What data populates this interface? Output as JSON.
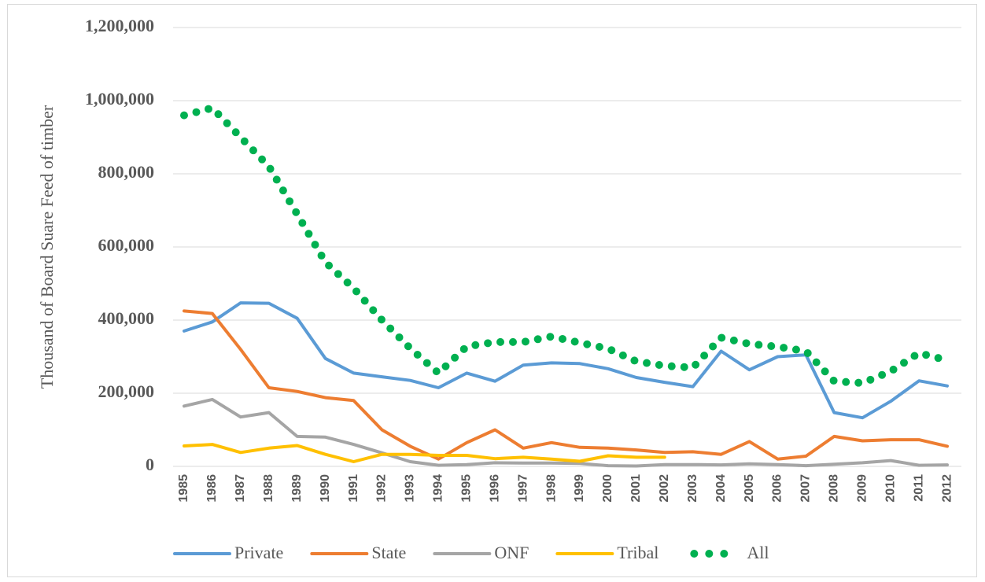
{
  "chart_data": {
    "type": "line",
    "y_label": "Thousand of Board Suare Feed of timber",
    "categories": [
      "1985",
      "1986",
      "1987",
      "1988",
      "1989",
      "1990",
      "1991",
      "1992",
      "1993",
      "1994",
      "1995",
      "1996",
      "1997",
      "1998",
      "1999",
      "2000",
      "2001",
      "2002",
      "2003",
      "2004",
      "2005",
      "2006",
      "2007",
      "2008",
      "2009",
      "2010",
      "2011",
      "2012"
    ],
    "series": [
      {
        "name": "Private",
        "color": "#5b9bd5",
        "style": "solid",
        "values": [
          370000,
          395000,
          447000,
          446000,
          405000,
          295000,
          255000,
          245000,
          235000,
          215000,
          255000,
          233000,
          277000,
          283000,
          281000,
          267000,
          243000,
          230000,
          218000,
          315000,
          264000,
          300000,
          305000,
          147000,
          133000,
          178000,
          234000,
          220000
        ]
      },
      {
        "name": "State",
        "color": "#ed7d31",
        "style": "solid",
        "values": [
          425000,
          418000,
          320000,
          215000,
          205000,
          188000,
          180000,
          100000,
          55000,
          20000,
          65000,
          100000,
          50000,
          65000,
          52000,
          50000,
          45000,
          38000,
          40000,
          33000,
          68000,
          20000,
          28000,
          82000,
          70000,
          73000,
          73000,
          55000
        ]
      },
      {
        "name": "ONF",
        "color": "#a5a5a5",
        "style": "solid",
        "values": [
          165000,
          183000,
          135000,
          147000,
          82000,
          80000,
          60000,
          37000,
          13000,
          3000,
          5000,
          10000,
          9000,
          9000,
          8000,
          2000,
          1000,
          5000,
          5000,
          4000,
          7000,
          5000,
          2000,
          6000,
          10000,
          16000,
          3000,
          4000
        ]
      },
      {
        "name": "Tribal",
        "color": "#ffc000",
        "style": "solid",
        "values": [
          56000,
          60000,
          38000,
          50000,
          57000,
          33000,
          13000,
          33000,
          33000,
          30000,
          30000,
          21000,
          25000,
          20000,
          14000,
          29000,
          25000,
          25000,
          null,
          null,
          null,
          null,
          null,
          null,
          null,
          null,
          null,
          null
        ]
      },
      {
        "name": "All",
        "color": "#00b050",
        "style": "dotted",
        "values": [
          960000,
          980000,
          900000,
          820000,
          690000,
          558000,
          487000,
          400000,
          323000,
          255000,
          328000,
          340000,
          340000,
          355000,
          338000,
          322000,
          287000,
          275000,
          270000,
          352000,
          335000,
          327000,
          315000,
          233000,
          228000,
          260000,
          310000,
          290000
        ]
      }
    ],
    "ylim": [
      0,
      1200000
    ],
    "yticks": [
      0,
      {
        "value": 200000,
        "label": "200,000"
      },
      {
        "value": 400000,
        "label": "400,000"
      },
      {
        "value": 600000,
        "label": "600,000"
      },
      {
        "value": 800000,
        "label": "800,000"
      },
      {
        "value": 1000000,
        "label": "1,000,000"
      },
      {
        "value": 1200000,
        "label": "1,200,000"
      }
    ],
    "grid": true,
    "legend": "bottom"
  }
}
